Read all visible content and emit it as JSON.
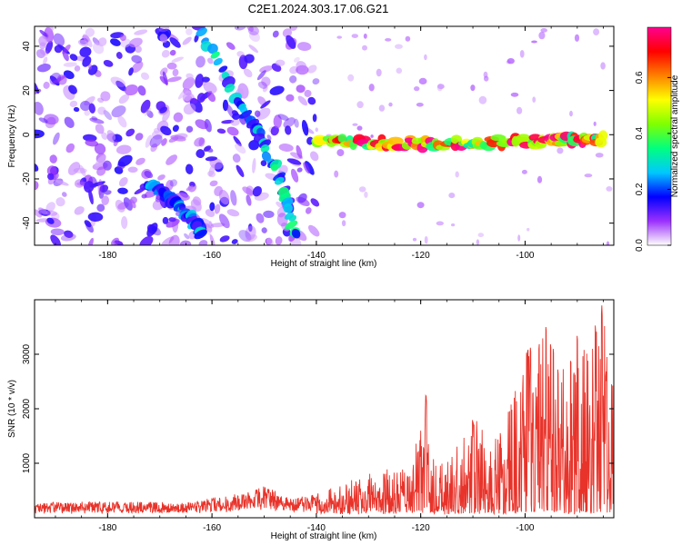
{
  "title": "C2E1.2024.303.17.06.G21",
  "chart_data": [
    {
      "type": "heatmap",
      "xlabel": "Height of straight line (km)",
      "ylabel": "Frequency (Hz)",
      "xlim": [
        -194,
        -83
      ],
      "ylim": [
        -50,
        49
      ],
      "xticks": [
        -180,
        -160,
        -140,
        -120,
        -100
      ],
      "yticks": [
        -40,
        -20,
        0,
        20,
        40
      ],
      "colorbar": {
        "label": "Normalized spectral amplitude",
        "range": [
          0,
          0.78
        ],
        "ticks": [
          0.0,
          0.2,
          0.4,
          0.6
        ],
        "tick_labels": [
          "0.0",
          "0.2",
          "0.4",
          "0.6"
        ],
        "colormap": [
          "#ffffff",
          "#9b30ff",
          "#0000ff",
          "#00c8ff",
          "#00ff80",
          "#80ff00",
          "#ffff00",
          "#ff8000",
          "#ff0000",
          "#ff0090"
        ]
      },
      "features": [
        {
          "kind": "track",
          "x": [
            -162,
            -155,
            -151,
            -147,
            -144
          ],
          "y": [
            46,
            15,
            0,
            -20,
            -45
          ],
          "amplitude": 0.3
        },
        {
          "kind": "track",
          "x": [
            -172,
            -166,
            -162
          ],
          "y": [
            -22,
            -33,
            -44
          ],
          "amplitude": 0.25
        },
        {
          "kind": "track",
          "x": [
            -140,
            -120,
            -100,
            -85
          ],
          "y": [
            -3,
            -4,
            -3,
            -2
          ],
          "amplitude": 0.7
        },
        {
          "kind": "noise",
          "x_range": [
            -194,
            -140
          ],
          "y_range": [
            -50,
            49
          ],
          "amplitude": 0.1
        }
      ]
    },
    {
      "type": "line",
      "xlabel": "Height of straight line (km)",
      "ylabel": "SNR (10 * v/v)",
      "xlim": [
        -194,
        -83
      ],
      "ylim": [
        0,
        4000
      ],
      "xticks": [
        -180,
        -160,
        -140,
        -120,
        -100
      ],
      "yticks": [
        1000,
        2000,
        3000
      ],
      "color": "#e8332a",
      "envelope": {
        "x": [
          -194,
          -180,
          -165,
          -155,
          -150,
          -145,
          -140,
          -133,
          -128,
          -122,
          -119,
          -117,
          -112,
          -109,
          -106,
          -103,
          -100,
          -97,
          -94,
          -91,
          -88,
          -86,
          -84,
          -83
        ],
        "y": [
          280,
          300,
          280,
          450,
          600,
          350,
          450,
          700,
          900,
          900,
          2200,
          900,
          1500,
          1800,
          1400,
          2000,
          3000,
          3500,
          3100,
          3000,
          3300,
          4000,
          3400,
          2500
        ]
      },
      "peaks": [
        {
          "x": -119,
          "y": 2250
        },
        {
          "x": -110,
          "y": 1800
        },
        {
          "x": -99.5,
          "y": 3100
        },
        {
          "x": -96,
          "y": 3550
        },
        {
          "x": -90,
          "y": 3400
        },
        {
          "x": -86.5,
          "y": 3550
        },
        {
          "x": -85.3,
          "y": 3900
        },
        {
          "x": -84.5,
          "y": 2700
        }
      ]
    }
  ]
}
